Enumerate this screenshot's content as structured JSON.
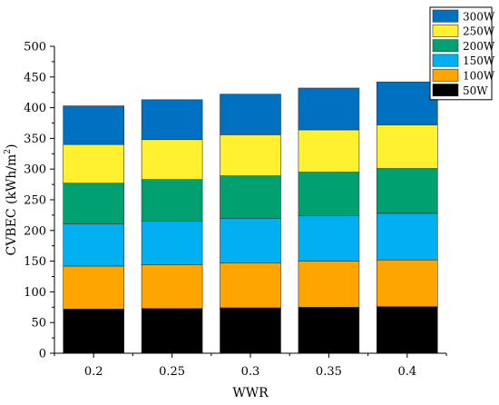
{
  "chart_data": {
    "type": "bar",
    "stacked": true,
    "categories": [
      "0.2",
      "0.25",
      "0.3",
      "0.35",
      "0.4"
    ],
    "series": [
      {
        "name": "50W",
        "color": "#000000",
        "values": [
          72,
          73,
          74,
          75,
          76
        ]
      },
      {
        "name": "100W",
        "color": "#FFA500",
        "values": [
          70,
          71,
          73,
          75,
          76
        ]
      },
      {
        "name": "150W",
        "color": "#00B0F0",
        "values": [
          69,
          71,
          73,
          74,
          76
        ]
      },
      {
        "name": "200W",
        "color": "#00A070",
        "values": [
          66,
          68,
          69,
          71,
          73
        ]
      },
      {
        "name": "250W",
        "color": "#FFF030",
        "values": [
          63,
          65,
          67,
          69,
          71
        ]
      },
      {
        "name": "300W",
        "color": "#0070C0",
        "values": [
          63,
          65,
          66,
          68,
          70
        ]
      }
    ],
    "xlabel": "WWR",
    "ylabel": "CVBEC (kWh/m",
    "ylabel_superscript": "2",
    "ylabel_suffix": ")",
    "ylim": [
      0,
      500
    ],
    "yticks": [
      "0",
      "50",
      "100",
      "150",
      "200",
      "250",
      "300",
      "350",
      "400",
      "450",
      "500"
    ],
    "legend_position": "top-right",
    "legend_order": [
      "300W",
      "250W",
      "200W",
      "150W",
      "100W",
      "50W"
    ],
    "grid": false
  }
}
